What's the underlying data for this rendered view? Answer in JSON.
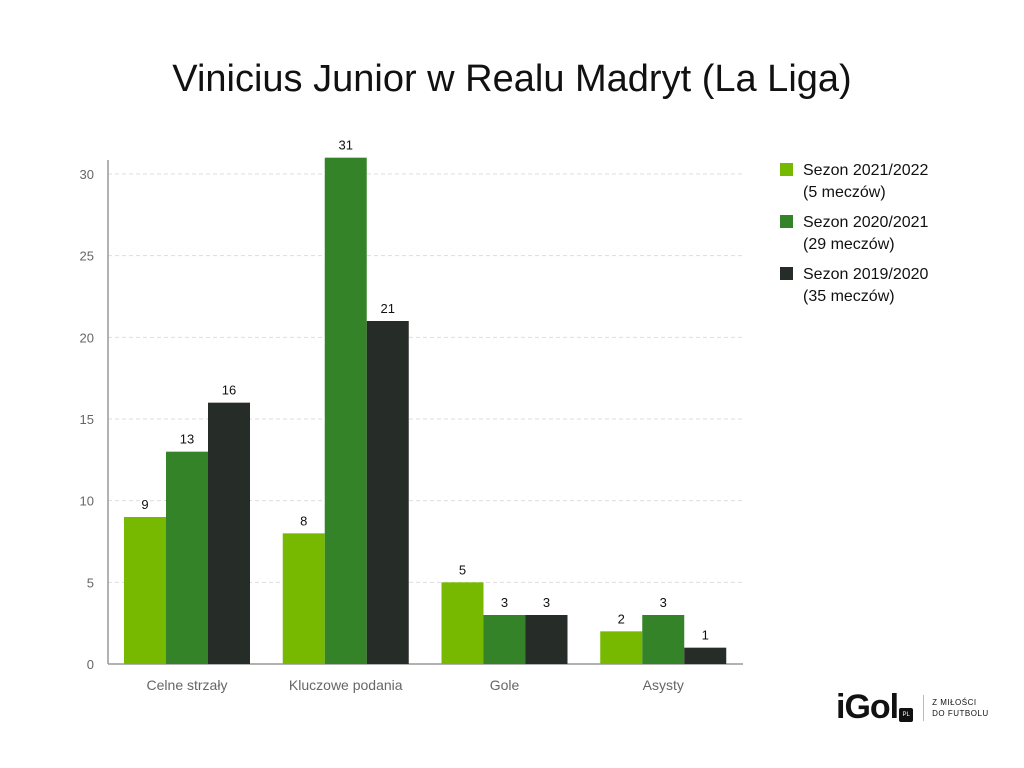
{
  "title": "Vinicius Junior w Realu Madryt (La Liga)",
  "colors": {
    "s2122": "#76b900",
    "s2021": "#358328",
    "s1920": "#262c27",
    "grid": "#dddddd",
    "axis": "#999999"
  },
  "legend": [
    {
      "line1": "Sezon 2021/2022",
      "line2": "(5 meczów)"
    },
    {
      "line1": "Sezon 2020/2021",
      "line2": "(29 meczów)"
    },
    {
      "line1": "Sezon 2019/2020",
      "line2": "(35 meczów)"
    }
  ],
  "logo": {
    "word": "iGol",
    "badge": "PL",
    "tag1": "Z MIŁOŚCI",
    "tag2": "DO FUTBOLU"
  },
  "chart_data": {
    "type": "bar",
    "categories": [
      "Celne strzały",
      "Kluczowe podania",
      "Gole",
      "Asysty"
    ],
    "series": [
      {
        "name": "Sezon 2021/2022 (5 meczów)",
        "values": [
          9,
          8,
          5,
          2
        ],
        "color": "#76b900"
      },
      {
        "name": "Sezon 2020/2021 (29 meczów)",
        "values": [
          13,
          31,
          3,
          3
        ],
        "color": "#358328"
      },
      {
        "name": "Sezon 2019/2020 (35 meczów)",
        "values": [
          16,
          21,
          3,
          1
        ],
        "color": "#262c27"
      }
    ],
    "yticks": [
      0,
      5,
      10,
      15,
      20,
      25,
      30
    ],
    "ylim": [
      0,
      31
    ],
    "grid": true,
    "legend_position": "right"
  }
}
